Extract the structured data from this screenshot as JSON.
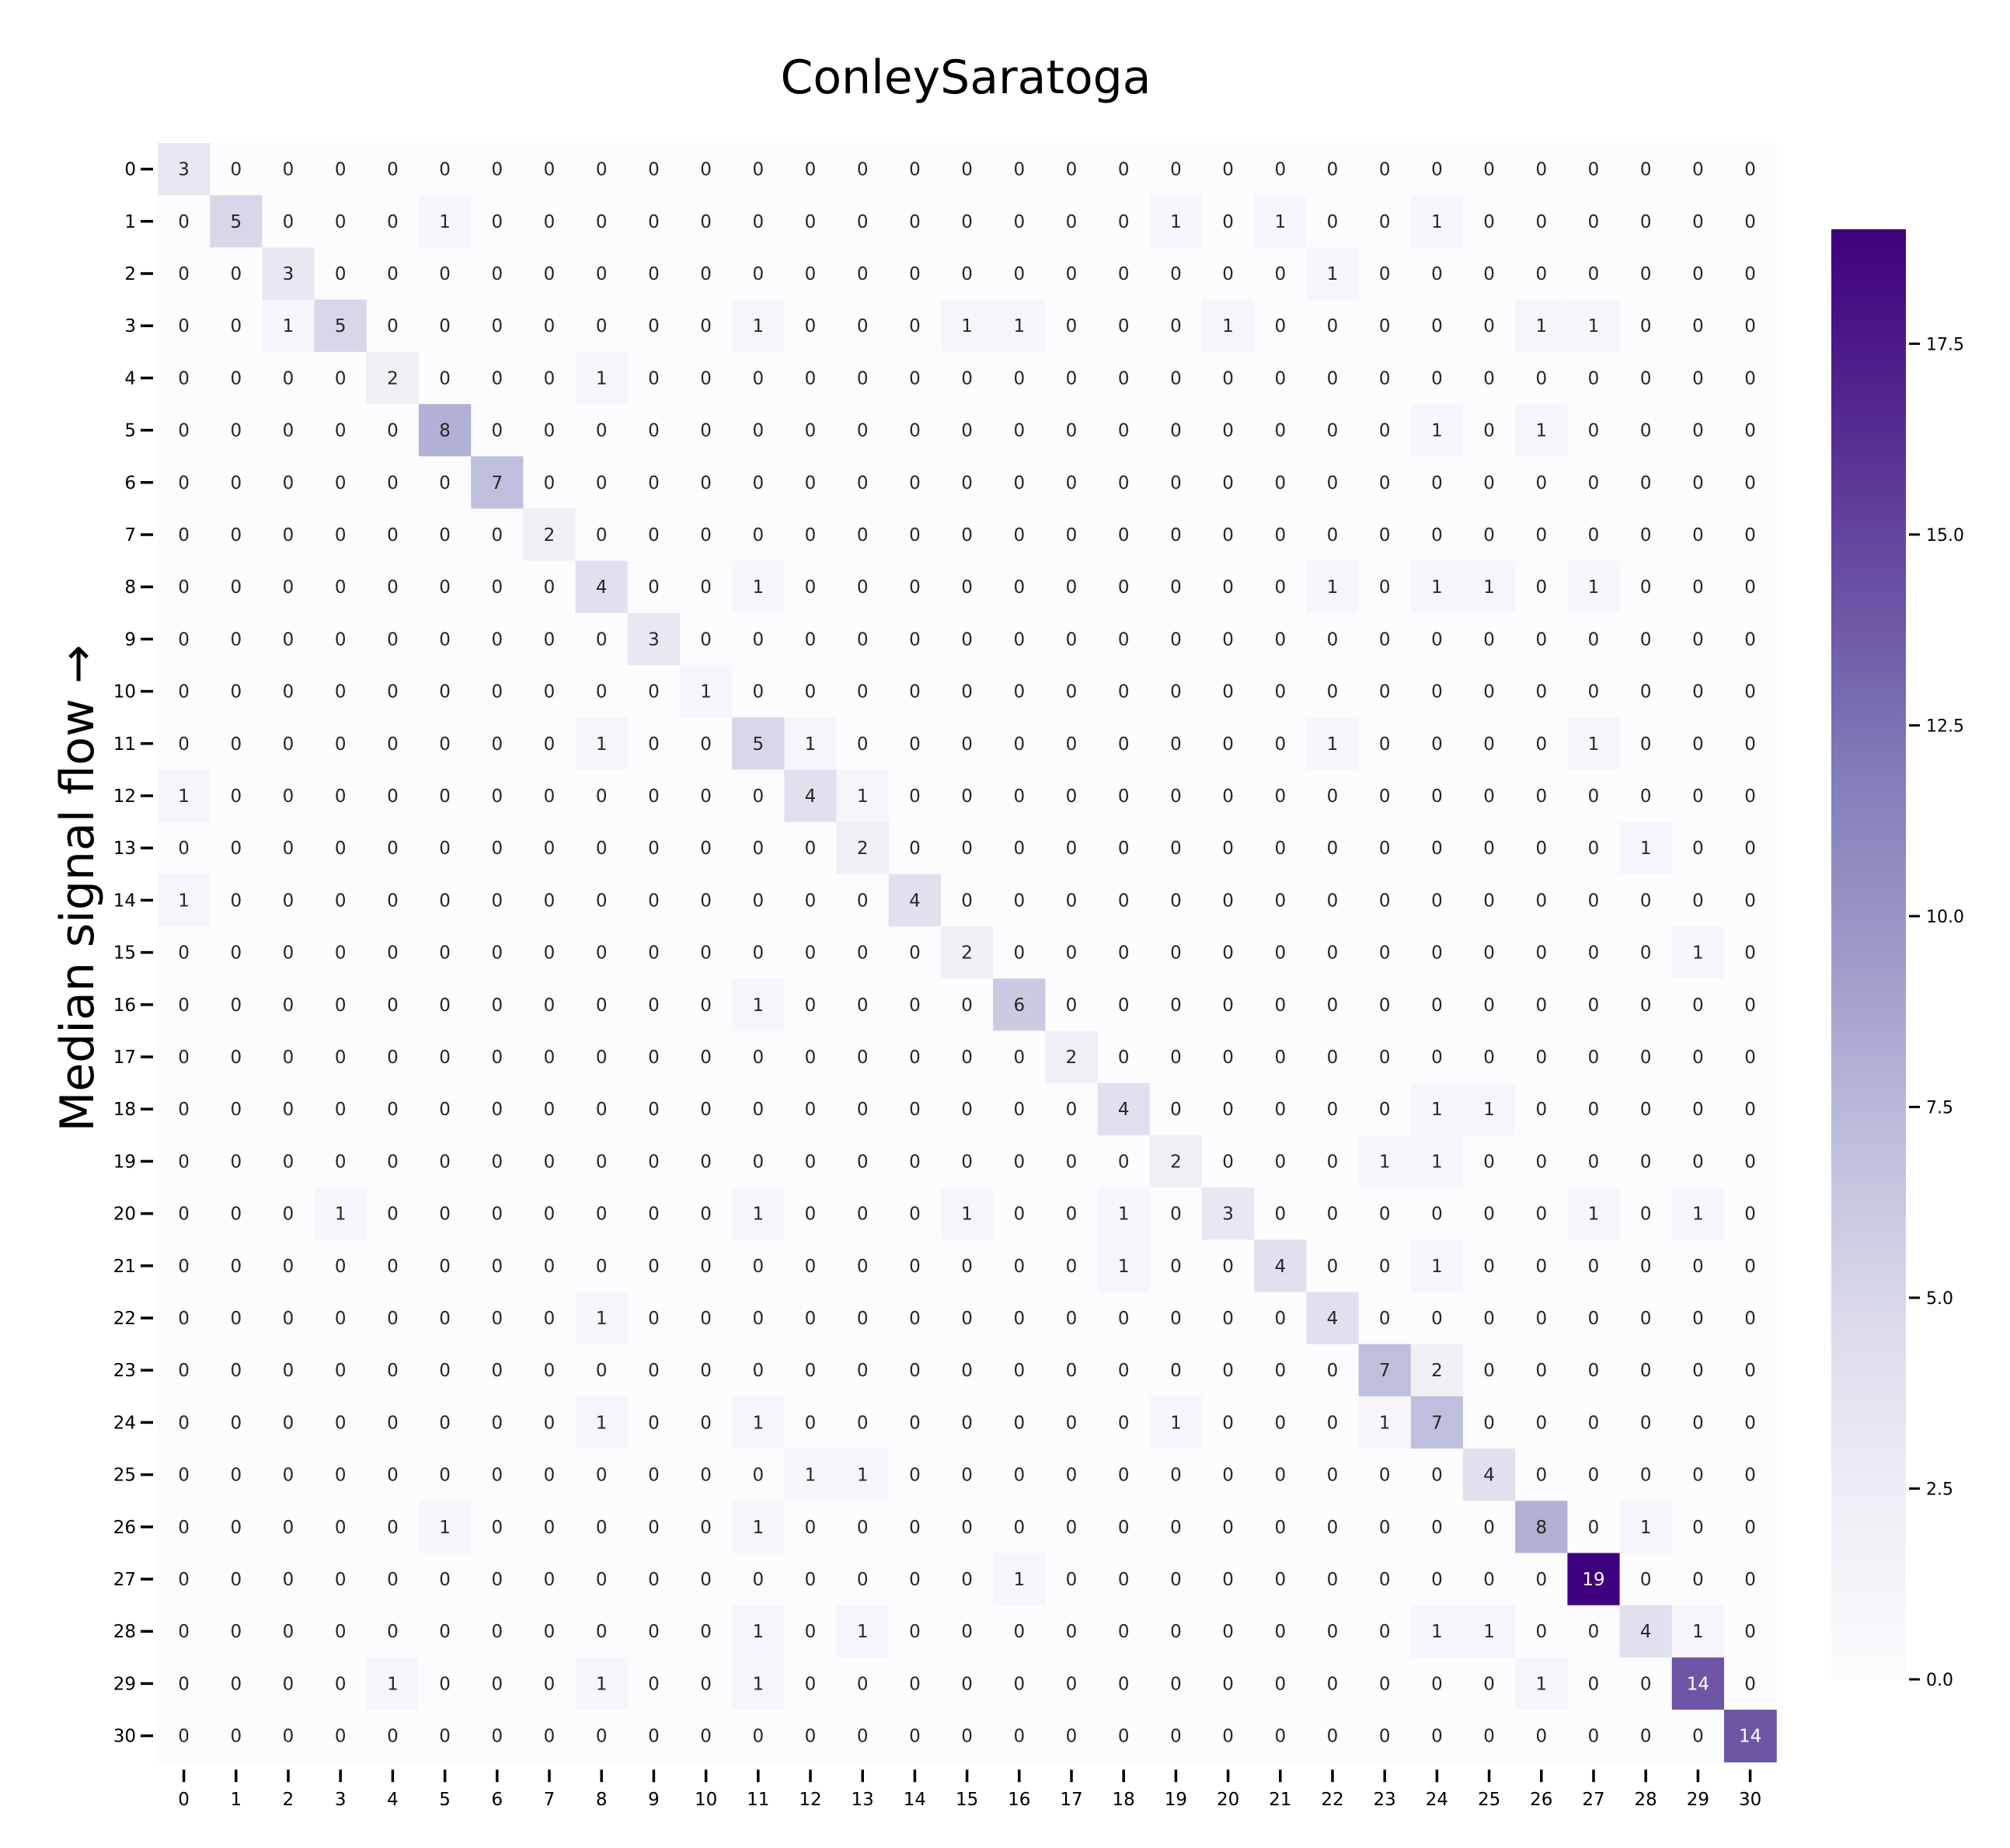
{
  "chart_data": {
    "type": "heatmap",
    "title": "ConleySaratoga",
    "ylabel": "Median signal flow →",
    "xlabel": "",
    "x_tick_labels": [
      "0",
      "1",
      "2",
      "3",
      "4",
      "5",
      "6",
      "7",
      "8",
      "9",
      "10",
      "11",
      "12",
      "13",
      "14",
      "15",
      "16",
      "17",
      "18",
      "19",
      "20",
      "21",
      "22",
      "23",
      "24",
      "25",
      "26",
      "27",
      "28",
      "29",
      "30"
    ],
    "y_tick_labels": [
      "0",
      "1",
      "2",
      "3",
      "4",
      "5",
      "6",
      "7",
      "8",
      "9",
      "10",
      "11",
      "12",
      "13",
      "14",
      "15",
      "16",
      "17",
      "18",
      "19",
      "20",
      "21",
      "22",
      "23",
      "24",
      "25",
      "26",
      "27",
      "28",
      "29",
      "30"
    ],
    "colormap": "Purples",
    "color_min": "#fcfbfd",
    "color_max": "#3f007d",
    "vmin": 0,
    "vmax": 19,
    "colorbar_ticks": [
      "0.0",
      "2.5",
      "5.0",
      "7.5",
      "10.0",
      "12.5",
      "15.0",
      "17.5"
    ],
    "colorbar_tick_values": [
      0,
      2.5,
      5,
      7.5,
      10,
      12.5,
      15,
      17.5
    ],
    "annotations": true,
    "matrix": [
      [
        3,
        0,
        0,
        0,
        0,
        0,
        0,
        0,
        0,
        0,
        0,
        0,
        0,
        0,
        0,
        0,
        0,
        0,
        0,
        0,
        0,
        0,
        0,
        0,
        0,
        0,
        0,
        0,
        0,
        0,
        0
      ],
      [
        0,
        5,
        0,
        0,
        0,
        1,
        0,
        0,
        0,
        0,
        0,
        0,
        0,
        0,
        0,
        0,
        0,
        0,
        0,
        1,
        0,
        1,
        0,
        0,
        1,
        0,
        0,
        0,
        0,
        0,
        0
      ],
      [
        0,
        0,
        3,
        0,
        0,
        0,
        0,
        0,
        0,
        0,
        0,
        0,
        0,
        0,
        0,
        0,
        0,
        0,
        0,
        0,
        0,
        0,
        1,
        0,
        0,
        0,
        0,
        0,
        0,
        0,
        0
      ],
      [
        0,
        0,
        1,
        5,
        0,
        0,
        0,
        0,
        0,
        0,
        0,
        1,
        0,
        0,
        0,
        1,
        1,
        0,
        0,
        0,
        1,
        0,
        0,
        0,
        0,
        0,
        1,
        1,
        0,
        0,
        0
      ],
      [
        0,
        0,
        0,
        0,
        2,
        0,
        0,
        0,
        1,
        0,
        0,
        0,
        0,
        0,
        0,
        0,
        0,
        0,
        0,
        0,
        0,
        0,
        0,
        0,
        0,
        0,
        0,
        0,
        0,
        0,
        0
      ],
      [
        0,
        0,
        0,
        0,
        0,
        8,
        0,
        0,
        0,
        0,
        0,
        0,
        0,
        0,
        0,
        0,
        0,
        0,
        0,
        0,
        0,
        0,
        0,
        0,
        1,
        0,
        1,
        0,
        0,
        0,
        0
      ],
      [
        0,
        0,
        0,
        0,
        0,
        0,
        7,
        0,
        0,
        0,
        0,
        0,
        0,
        0,
        0,
        0,
        0,
        0,
        0,
        0,
        0,
        0,
        0,
        0,
        0,
        0,
        0,
        0,
        0,
        0,
        0
      ],
      [
        0,
        0,
        0,
        0,
        0,
        0,
        0,
        2,
        0,
        0,
        0,
        0,
        0,
        0,
        0,
        0,
        0,
        0,
        0,
        0,
        0,
        0,
        0,
        0,
        0,
        0,
        0,
        0,
        0,
        0,
        0
      ],
      [
        0,
        0,
        0,
        0,
        0,
        0,
        0,
        0,
        4,
        0,
        0,
        1,
        0,
        0,
        0,
        0,
        0,
        0,
        0,
        0,
        0,
        0,
        1,
        0,
        1,
        1,
        0,
        1,
        0,
        0,
        0
      ],
      [
        0,
        0,
        0,
        0,
        0,
        0,
        0,
        0,
        0,
        3,
        0,
        0,
        0,
        0,
        0,
        0,
        0,
        0,
        0,
        0,
        0,
        0,
        0,
        0,
        0,
        0,
        0,
        0,
        0,
        0,
        0
      ],
      [
        0,
        0,
        0,
        0,
        0,
        0,
        0,
        0,
        0,
        0,
        1,
        0,
        0,
        0,
        0,
        0,
        0,
        0,
        0,
        0,
        0,
        0,
        0,
        0,
        0,
        0,
        0,
        0,
        0,
        0,
        0
      ],
      [
        0,
        0,
        0,
        0,
        0,
        0,
        0,
        0,
        1,
        0,
        0,
        5,
        1,
        0,
        0,
        0,
        0,
        0,
        0,
        0,
        0,
        0,
        1,
        0,
        0,
        0,
        0,
        1,
        0,
        0,
        0
      ],
      [
        1,
        0,
        0,
        0,
        0,
        0,
        0,
        0,
        0,
        0,
        0,
        0,
        4,
        1,
        0,
        0,
        0,
        0,
        0,
        0,
        0,
        0,
        0,
        0,
        0,
        0,
        0,
        0,
        0,
        0,
        0
      ],
      [
        0,
        0,
        0,
        0,
        0,
        0,
        0,
        0,
        0,
        0,
        0,
        0,
        0,
        2,
        0,
        0,
        0,
        0,
        0,
        0,
        0,
        0,
        0,
        0,
        0,
        0,
        0,
        0,
        1,
        0,
        0
      ],
      [
        1,
        0,
        0,
        0,
        0,
        0,
        0,
        0,
        0,
        0,
        0,
        0,
        0,
        0,
        4,
        0,
        0,
        0,
        0,
        0,
        0,
        0,
        0,
        0,
        0,
        0,
        0,
        0,
        0,
        0,
        0
      ],
      [
        0,
        0,
        0,
        0,
        0,
        0,
        0,
        0,
        0,
        0,
        0,
        0,
        0,
        0,
        0,
        2,
        0,
        0,
        0,
        0,
        0,
        0,
        0,
        0,
        0,
        0,
        0,
        0,
        0,
        1,
        0
      ],
      [
        0,
        0,
        0,
        0,
        0,
        0,
        0,
        0,
        0,
        0,
        0,
        1,
        0,
        0,
        0,
        0,
        6,
        0,
        0,
        0,
        0,
        0,
        0,
        0,
        0,
        0,
        0,
        0,
        0,
        0,
        0
      ],
      [
        0,
        0,
        0,
        0,
        0,
        0,
        0,
        0,
        0,
        0,
        0,
        0,
        0,
        0,
        0,
        0,
        0,
        2,
        0,
        0,
        0,
        0,
        0,
        0,
        0,
        0,
        0,
        0,
        0,
        0,
        0
      ],
      [
        0,
        0,
        0,
        0,
        0,
        0,
        0,
        0,
        0,
        0,
        0,
        0,
        0,
        0,
        0,
        0,
        0,
        0,
        4,
        0,
        0,
        0,
        0,
        0,
        1,
        1,
        0,
        0,
        0,
        0,
        0
      ],
      [
        0,
        0,
        0,
        0,
        0,
        0,
        0,
        0,
        0,
        0,
        0,
        0,
        0,
        0,
        0,
        0,
        0,
        0,
        0,
        2,
        0,
        0,
        0,
        1,
        1,
        0,
        0,
        0,
        0,
        0,
        0
      ],
      [
        0,
        0,
        0,
        1,
        0,
        0,
        0,
        0,
        0,
        0,
        0,
        1,
        0,
        0,
        0,
        1,
        0,
        0,
        1,
        0,
        3,
        0,
        0,
        0,
        0,
        0,
        0,
        1,
        0,
        1,
        0
      ],
      [
        0,
        0,
        0,
        0,
        0,
        0,
        0,
        0,
        0,
        0,
        0,
        0,
        0,
        0,
        0,
        0,
        0,
        0,
        1,
        0,
        0,
        4,
        0,
        0,
        1,
        0,
        0,
        0,
        0,
        0,
        0
      ],
      [
        0,
        0,
        0,
        0,
        0,
        0,
        0,
        0,
        1,
        0,
        0,
        0,
        0,
        0,
        0,
        0,
        0,
        0,
        0,
        0,
        0,
        0,
        4,
        0,
        0,
        0,
        0,
        0,
        0,
        0,
        0
      ],
      [
        0,
        0,
        0,
        0,
        0,
        0,
        0,
        0,
        0,
        0,
        0,
        0,
        0,
        0,
        0,
        0,
        0,
        0,
        0,
        0,
        0,
        0,
        0,
        7,
        2,
        0,
        0,
        0,
        0,
        0,
        0
      ],
      [
        0,
        0,
        0,
        0,
        0,
        0,
        0,
        0,
        1,
        0,
        0,
        1,
        0,
        0,
        0,
        0,
        0,
        0,
        0,
        1,
        0,
        0,
        0,
        1,
        7,
        0,
        0,
        0,
        0,
        0,
        0
      ],
      [
        0,
        0,
        0,
        0,
        0,
        0,
        0,
        0,
        0,
        0,
        0,
        0,
        1,
        1,
        0,
        0,
        0,
        0,
        0,
        0,
        0,
        0,
        0,
        0,
        0,
        4,
        0,
        0,
        0,
        0,
        0
      ],
      [
        0,
        0,
        0,
        0,
        0,
        1,
        0,
        0,
        0,
        0,
        0,
        1,
        0,
        0,
        0,
        0,
        0,
        0,
        0,
        0,
        0,
        0,
        0,
        0,
        0,
        0,
        8,
        0,
        1,
        0,
        0
      ],
      [
        0,
        0,
        0,
        0,
        0,
        0,
        0,
        0,
        0,
        0,
        0,
        0,
        0,
        0,
        0,
        0,
        1,
        0,
        0,
        0,
        0,
        0,
        0,
        0,
        0,
        0,
        0,
        19,
        0,
        0,
        0
      ],
      [
        0,
        0,
        0,
        0,
        0,
        0,
        0,
        0,
        0,
        0,
        0,
        1,
        0,
        1,
        0,
        0,
        0,
        0,
        0,
        0,
        0,
        0,
        0,
        0,
        1,
        1,
        0,
        0,
        4,
        1,
        0
      ],
      [
        0,
        0,
        0,
        0,
        1,
        0,
        0,
        0,
        1,
        0,
        0,
        1,
        0,
        0,
        0,
        0,
        0,
        0,
        0,
        0,
        0,
        0,
        0,
        0,
        0,
        0,
        1,
        0,
        0,
        14,
        0
      ],
      [
        0,
        0,
        0,
        0,
        0,
        0,
        0,
        0,
        0,
        0,
        0,
        0,
        0,
        0,
        0,
        0,
        0,
        0,
        0,
        0,
        0,
        0,
        0,
        0,
        0,
        0,
        0,
        0,
        0,
        0,
        14
      ]
    ]
  }
}
